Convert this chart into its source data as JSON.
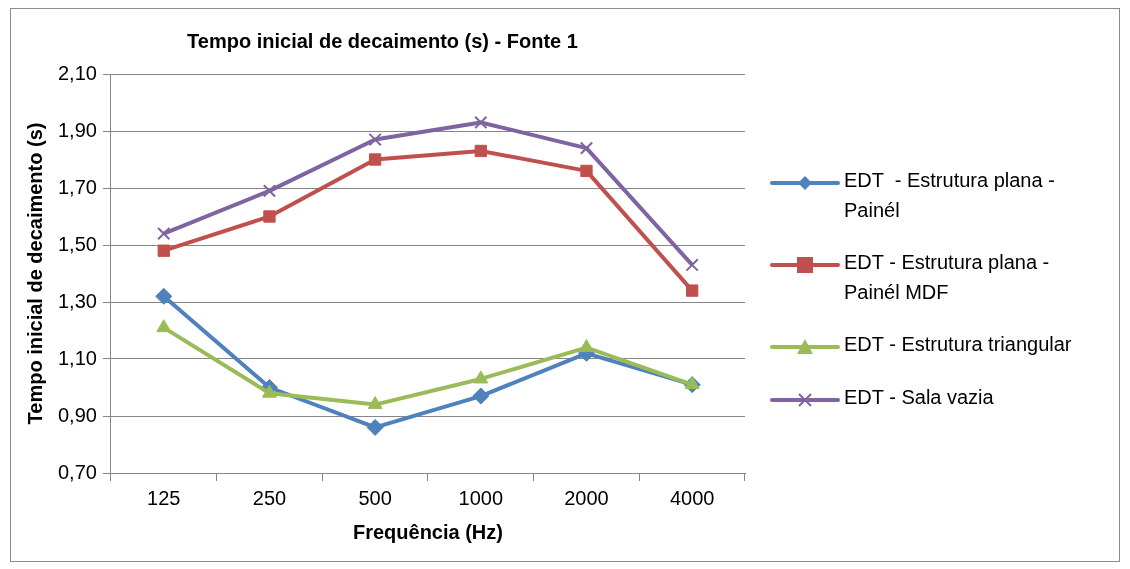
{
  "chart_data": {
    "type": "line",
    "title": "Tempo inicial de decaimento (s) - Fonte 1",
    "xlabel": "Frequência (Hz)",
    "ylabel": "Tempo inicial de decaimento (s)",
    "categories": [
      "125",
      "250",
      "500",
      "1000",
      "2000",
      "4000"
    ],
    "series": [
      {
        "name": "EDT  - Estrutura plana - Painél",
        "color": "#4f81bd",
        "marker": "diamond",
        "values": [
          1.32,
          1.0,
          0.86,
          0.97,
          1.12,
          1.01
        ]
      },
      {
        "name": "EDT - Estrutura plana - Painél MDF",
        "color": "#c0504d",
        "marker": "square",
        "values": [
          1.48,
          1.6,
          1.8,
          1.83,
          1.76,
          1.34
        ]
      },
      {
        "name": "EDT - Estrutura triangular",
        "color": "#9bbb59",
        "marker": "triangle",
        "values": [
          1.21,
          0.98,
          0.94,
          1.03,
          1.14,
          1.01
        ]
      },
      {
        "name": "EDT - Sala vazia",
        "color": "#8064a2",
        "marker": "cross",
        "values": [
          1.54,
          1.69,
          1.87,
          1.93,
          1.84,
          1.43
        ]
      }
    ],
    "ylim": [
      0.7,
      2.1
    ],
    "yticks": [
      {
        "value": 0.7,
        "label": "0,70"
      },
      {
        "value": 0.9,
        "label": "0,90"
      },
      {
        "value": 1.1,
        "label": "1,10"
      },
      {
        "value": 1.3,
        "label": "1,30"
      },
      {
        "value": 1.5,
        "label": "1,50"
      },
      {
        "value": 1.7,
        "label": "1,70"
      },
      {
        "value": 1.9,
        "label": "1,90"
      },
      {
        "value": 2.1,
        "label": "2,10"
      }
    ],
    "grid": "y",
    "legend": "right"
  }
}
